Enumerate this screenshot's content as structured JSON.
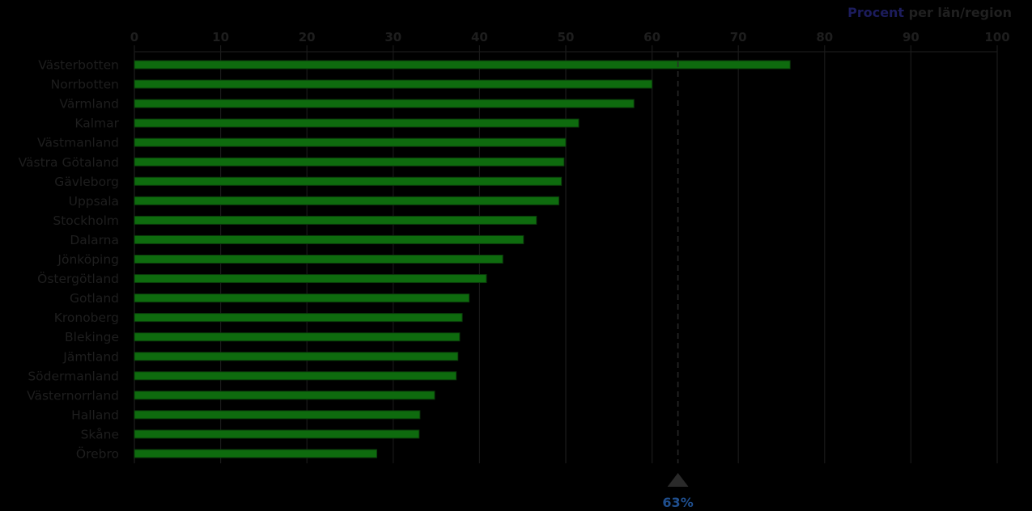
{
  "chart_data": {
    "type": "bar",
    "orientation": "horizontal",
    "title_unit": "Procent",
    "title_rest": "per län/region",
    "xlim": [
      0,
      100
    ],
    "x_ticks": [
      0,
      10,
      20,
      30,
      40,
      50,
      60,
      70,
      80,
      90,
      100
    ],
    "grid": true,
    "categories": [
      "Västerbotten",
      "Norrbotten",
      "Värmland",
      "Kalmar",
      "Västmanland",
      "Västra Götaland",
      "Gävleborg",
      "Uppsala",
      "Stockholm",
      "Dalarna",
      "Jönköping",
      "Östergötland",
      "Gotland",
      "Kronoberg",
      "Blekinge",
      "Jämtland",
      "Södermanland",
      "Västernorrland",
      "Halland",
      "Skåne",
      "Örebro"
    ],
    "values": [
      76,
      60,
      57.9,
      51.5,
      50,
      49.8,
      49.5,
      49.2,
      46.6,
      45.1,
      42.7,
      40.8,
      38.8,
      38,
      37.7,
      37.5,
      37.3,
      34.8,
      33.1,
      33,
      28.1
    ],
    "reference": {
      "value": 63,
      "label": "63%"
    },
    "colors": {
      "bar": "#0e6b0e",
      "bar_edge": "#0b3a0b",
      "text": "#1e1e1e",
      "grid": "#1a1a1a",
      "reference_line": "#2a2a2a",
      "reference_label": "#1f4f8f",
      "title_unit": "#1c1c5c",
      "background": "#000000"
    }
  }
}
